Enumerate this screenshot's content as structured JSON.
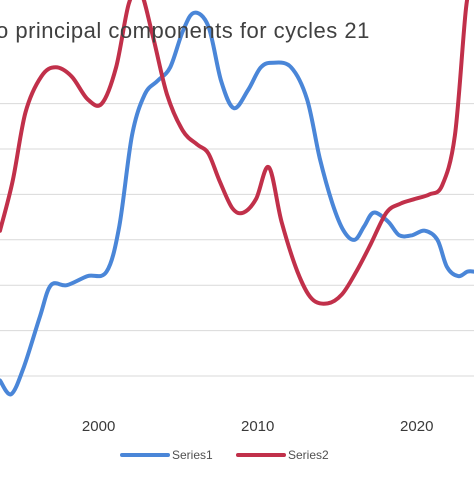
{
  "chart_data": {
    "type": "line",
    "title": "o principal components for cycles  21",
    "xlabel": "",
    "ylabel": "",
    "xlim": [
      1993.8,
      2023.6
    ],
    "ylim": [
      -1,
      11
    ],
    "x_ticks": [
      {
        "value": 2000,
        "label": "2000"
      },
      {
        "value": 2010,
        "label": "2010"
      },
      {
        "value": 2020,
        "label": "2020"
      }
    ],
    "y_grid": [
      0,
      1,
      2,
      3,
      4,
      5,
      6,
      7,
      8,
      9,
      10
    ],
    "grid": true,
    "legend_position": "bottom",
    "series": [
      {
        "name": "Series1",
        "color": "#4a86d8",
        "x": [
          1993.8,
          1994.5,
          1995.3,
          1996.3,
          1997.0,
          1998.0,
          1999.3,
          2000.5,
          2001.3,
          2002.1,
          2002.9,
          2003.7,
          2004.5,
          2005.3,
          2006.0,
          2006.9,
          2007.7,
          2008.5,
          2009.4,
          2010.2,
          2011.0,
          2012.1,
          2013.1,
          2013.9,
          2014.7,
          2015.4,
          2016.1,
          2016.7,
          2017.3,
          2018.2,
          2018.9,
          2019.7,
          2020.5,
          2021.3,
          2021.9,
          2022.6,
          2023.2,
          2023.6
        ],
        "y": [
          -0.1,
          -0.4,
          0.2,
          1.3,
          2.0,
          2.0,
          2.2,
          2.3,
          3.3,
          5.3,
          6.2,
          6.5,
          6.8,
          7.6,
          8.0,
          7.7,
          6.5,
          5.9,
          6.3,
          6.8,
          6.9,
          6.8,
          6.1,
          4.8,
          3.8,
          3.2,
          3.0,
          3.3,
          3.6,
          3.4,
          3.1,
          3.1,
          3.2,
          3.0,
          2.4,
          2.2,
          2.3,
          2.3
        ]
      },
      {
        "name": "Series2",
        "color": "#c1304a",
        "x": [
          1993.8,
          1994.6,
          1995.4,
          1996.4,
          1997.3,
          1998.3,
          1999.3,
          2000.2,
          2001.1,
          2001.9,
          2002.6,
          2003.4,
          2004.3,
          2005.3,
          2006.2,
          2006.9,
          2007.6,
          2008.4,
          2009.1,
          2009.9,
          2010.7,
          2011.5,
          2012.5,
          2013.4,
          2014.4,
          2015.3,
          2016.2,
          2017.1,
          2018.1,
          2019.0,
          2019.9,
          2020.8,
          2021.6,
          2022.4,
          2023.1,
          2023.6
        ],
        "y": [
          3.2,
          4.3,
          5.8,
          6.6,
          6.8,
          6.6,
          6.1,
          6.0,
          6.8,
          8.2,
          8.5,
          7.5,
          6.2,
          5.4,
          5.1,
          4.9,
          4.3,
          3.7,
          3.6,
          3.9,
          4.6,
          3.4,
          2.3,
          1.7,
          1.6,
          1.8,
          2.3,
          2.9,
          3.6,
          3.8,
          3.9,
          4.0,
          4.2,
          5.3,
          8.1,
          9.0
        ]
      }
    ]
  }
}
